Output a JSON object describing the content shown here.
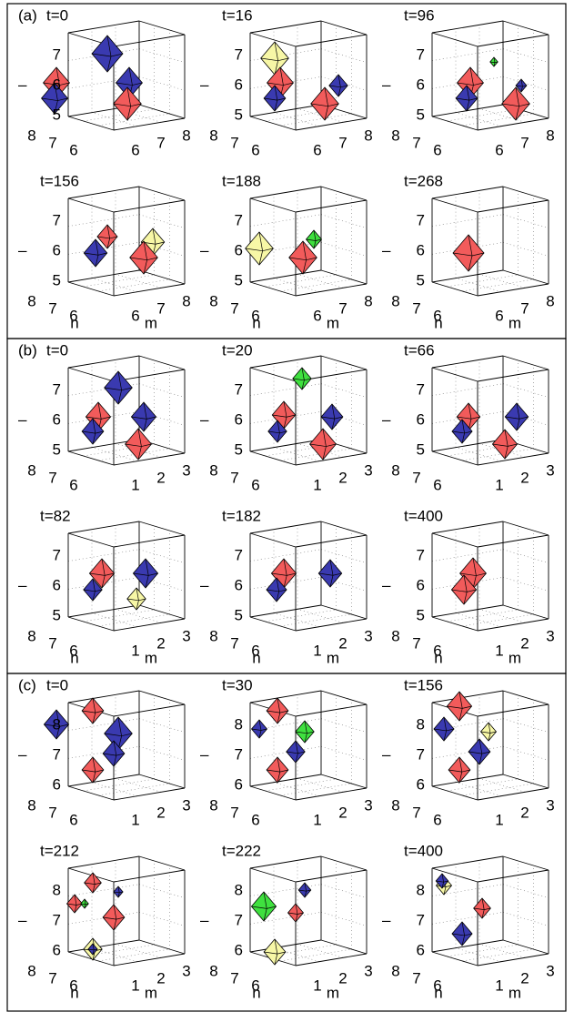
{
  "figure": {
    "groups": [
      {
        "label": "(a)",
        "zlabel": "–",
        "xlabel": "m",
        "ylabel": "n",
        "zticks": [
          "7",
          "6",
          "5"
        ],
        "nticks": [
          "8",
          "7",
          "6"
        ],
        "mticks": [
          "6",
          "7",
          "8"
        ],
        "panels": [
          "t=0",
          "t=16",
          "t=96",
          "t=156",
          "t=188",
          "t=268"
        ]
      },
      {
        "label": "(b)",
        "zlabel": "–",
        "xlabel": "m",
        "ylabel": "n",
        "zticks": [
          "7",
          "6",
          "5"
        ],
        "nticks": [
          "8",
          "7",
          "6"
        ],
        "mticks": [
          "1",
          "2",
          "3"
        ],
        "panels": [
          "t=0",
          "t=20",
          "t=66",
          "t=82",
          "t=182",
          "t=400"
        ]
      },
      {
        "label": "(c)",
        "zlabel": "–",
        "xlabel": "m",
        "ylabel": "n",
        "zticks": [
          "8",
          "7",
          "6"
        ],
        "nticks": [
          "8",
          "7",
          "6"
        ],
        "mticks": [
          "1",
          "2",
          "3"
        ],
        "panels": [
          "t=0",
          "t=30",
          "t=156",
          "t=212",
          "t=222",
          "t=400"
        ]
      }
    ]
  }
}
